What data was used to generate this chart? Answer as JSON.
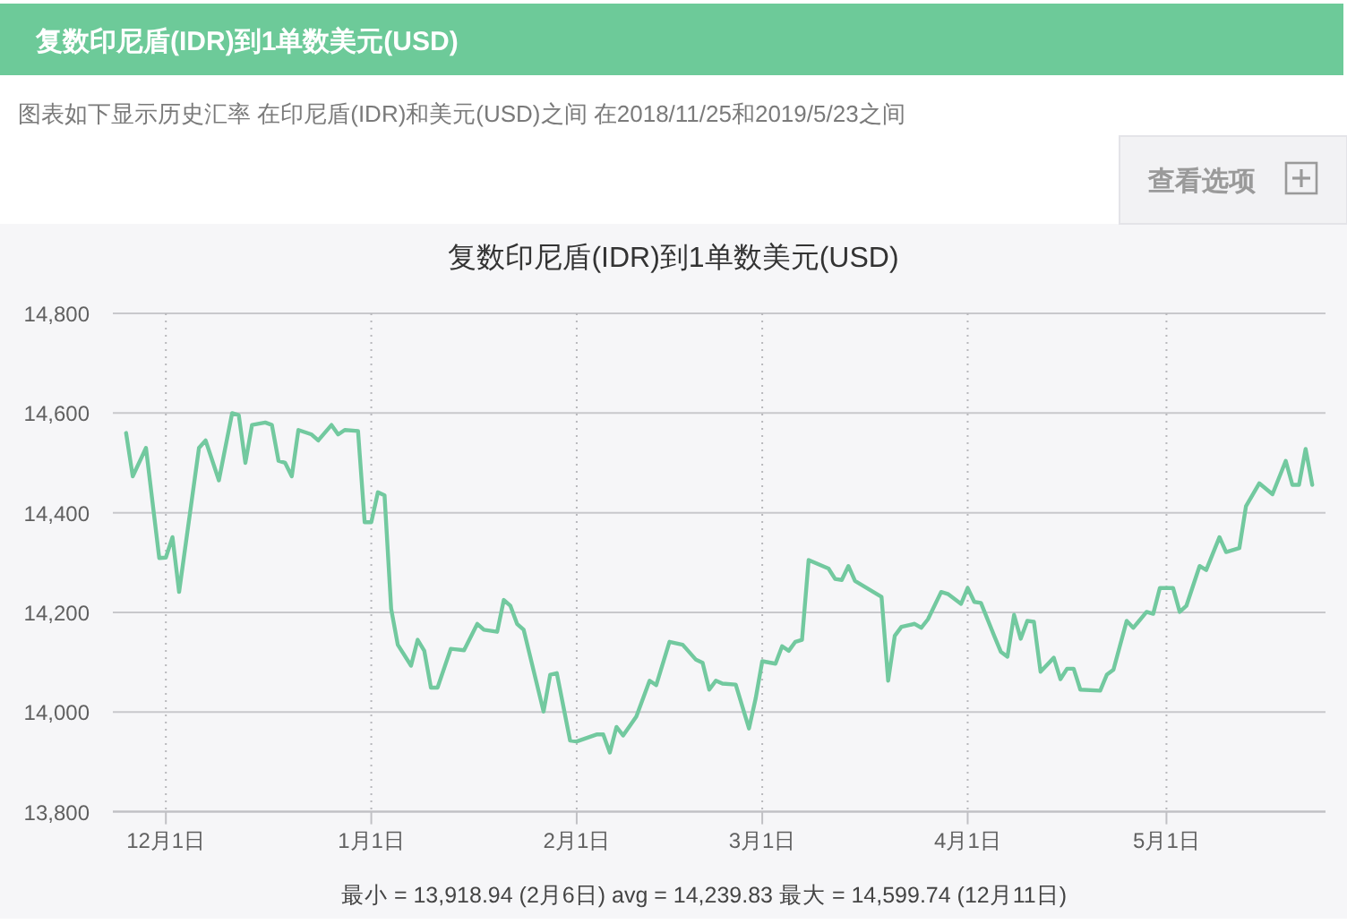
{
  "chart_data": {
    "type": "line",
    "title": "复数印尼盾(IDR)到1单数美元(USD)",
    "subtitle": "图表如下显示历史汇率 在印尼盾(IDR)和美元(USD)之间 在2018/11/25和2019/5/23之间",
    "annotations": [
      "复数印尼盾(IDR)到1单数美元(USD)",
      "查看选项",
      "最小 = 13,918.94 (2月6日) avg = 14,239.83 最大 = 14,599.74 (12月11日)"
    ],
    "color": "#72c99f",
    "grid": true,
    "xlim": [
      "2018-11-23",
      "2019-05-25"
    ],
    "xticks": [
      {
        "value": "2018-12-01",
        "label": "12月1日"
      },
      {
        "value": "2019-01-01",
        "label": "1月1日"
      },
      {
        "value": "2019-02-01",
        "label": "2月1日"
      },
      {
        "value": "2019-03-01",
        "label": "3月1日"
      },
      {
        "value": "2019-04-01",
        "label": "4月1日"
      },
      {
        "value": "2019-05-01",
        "label": "5月1日"
      }
    ],
    "ylim": [
      13800,
      14800
    ],
    "yticks": [
      {
        "value": 13800,
        "label": "13,800"
      },
      {
        "value": 14000,
        "label": "14,000"
      },
      {
        "value": 14200,
        "label": "14,200"
      },
      {
        "value": 14400,
        "label": "14,400"
      },
      {
        "value": 14600,
        "label": "14,600"
      },
      {
        "value": 14800,
        "label": "14,800"
      }
    ],
    "x": [
      "2018-11-25",
      "2018-11-26",
      "2018-11-28",
      "2018-11-30",
      "2018-12-01",
      "2018-12-02",
      "2018-12-03",
      "2018-12-06",
      "2018-12-07",
      "2018-12-09",
      "2018-12-11",
      "2018-12-12",
      "2018-12-13",
      "2018-12-14",
      "2018-12-16",
      "2018-12-17",
      "2018-12-18",
      "2018-12-19",
      "2018-12-20",
      "2018-12-21",
      "2018-12-23",
      "2018-12-24",
      "2018-12-26",
      "2018-12-27",
      "2018-12-28",
      "2018-12-30",
      "2018-12-31",
      "2019-01-01",
      "2019-01-02",
      "2019-01-03",
      "2019-01-04",
      "2019-01-05",
      "2019-01-07",
      "2019-01-08",
      "2019-01-09",
      "2019-01-10",
      "2019-01-11",
      "2019-01-13",
      "2019-01-15",
      "2019-01-17",
      "2019-01-18",
      "2019-01-20",
      "2019-01-21",
      "2019-01-22",
      "2019-01-23",
      "2019-01-24",
      "2019-01-27",
      "2019-01-28",
      "2019-01-29",
      "2019-01-31",
      "2019-02-01",
      "2019-02-04",
      "2019-02-05",
      "2019-02-06",
      "2019-02-07",
      "2019-02-08",
      "2019-02-10",
      "2019-02-12",
      "2019-02-13",
      "2019-02-15",
      "2019-02-17",
      "2019-02-19",
      "2019-02-20",
      "2019-02-21",
      "2019-02-22",
      "2019-02-23",
      "2019-02-25",
      "2019-02-27",
      "2019-02-28",
      "2019-03-01",
      "2019-03-03",
      "2019-03-04",
      "2019-03-05",
      "2019-03-06",
      "2019-03-07",
      "2019-03-08",
      "2019-03-11",
      "2019-03-12",
      "2019-03-13",
      "2019-03-14",
      "2019-03-15",
      "2019-03-19",
      "2019-03-20",
      "2019-03-21",
      "2019-03-22",
      "2019-03-24",
      "2019-03-25",
      "2019-03-26",
      "2019-03-28",
      "2019-03-29",
      "2019-03-31",
      "2019-04-01",
      "2019-04-02",
      "2019-04-03",
      "2019-04-05",
      "2019-04-06",
      "2019-04-07",
      "2019-04-08",
      "2019-04-09",
      "2019-04-10",
      "2019-04-11",
      "2019-04-12",
      "2019-04-14",
      "2019-04-15",
      "2019-04-16",
      "2019-04-17",
      "2019-04-18",
      "2019-04-21",
      "2019-04-22",
      "2019-04-23",
      "2019-04-25",
      "2019-04-26",
      "2019-04-28",
      "2019-04-29",
      "2019-04-30",
      "2019-05-02",
      "2019-05-03",
      "2019-05-04",
      "2019-05-06",
      "2019-05-07",
      "2019-05-09",
      "2019-05-10",
      "2019-05-12",
      "2019-05-13",
      "2019-05-15",
      "2019-05-17",
      "2019-05-19",
      "2019-05-20",
      "2019-05-21",
      "2019-05-22",
      "2019-05-23"
    ],
    "values": [
      14560,
      14473,
      14530,
      14309,
      14310,
      14351,
      14241,
      14530,
      14545,
      14465,
      14599.74,
      14596,
      14500,
      14576,
      14581,
      14576,
      14504,
      14500,
      14473,
      14566,
      14557,
      14545,
      14576,
      14557,
      14566,
      14564,
      14381,
      14381,
      14441,
      14435,
      14207,
      14135,
      14093,
      14145,
      14123,
      14049,
      14049,
      14127,
      14124,
      14177,
      14165,
      14161,
      14225,
      14213,
      14177,
      14165,
      14001,
      14075,
      14078,
      13943,
      13941,
      13955,
      13955,
      13918.94,
      13970,
      13953,
      13991,
      14063,
      14054,
      14141,
      14135,
      14105,
      14099,
      14045,
      14063,
      14057,
      14055,
      13967,
      14027,
      14102,
      14097,
      14132,
      14123,
      14141,
      14145,
      14305,
      14288,
      14267,
      14265,
      14293,
      14263,
      14231,
      14063,
      14153,
      14171,
      14177,
      14169,
      14186,
      14241,
      14237,
      14217,
      14249,
      14221,
      14219,
      14153,
      14121,
      14111,
      14195,
      14147,
      14183,
      14181,
      14081,
      14109,
      14066,
      14087,
      14087,
      14045,
      14043,
      14075,
      14085,
      14183,
      14169,
      14201,
      14197,
      14249,
      14249,
      14201,
      14213,
      14293,
      14285,
      14351,
      14321,
      14329,
      14413,
      14459,
      14437,
      14504,
      14456,
      14456,
      14528,
      14456
    ]
  }
}
